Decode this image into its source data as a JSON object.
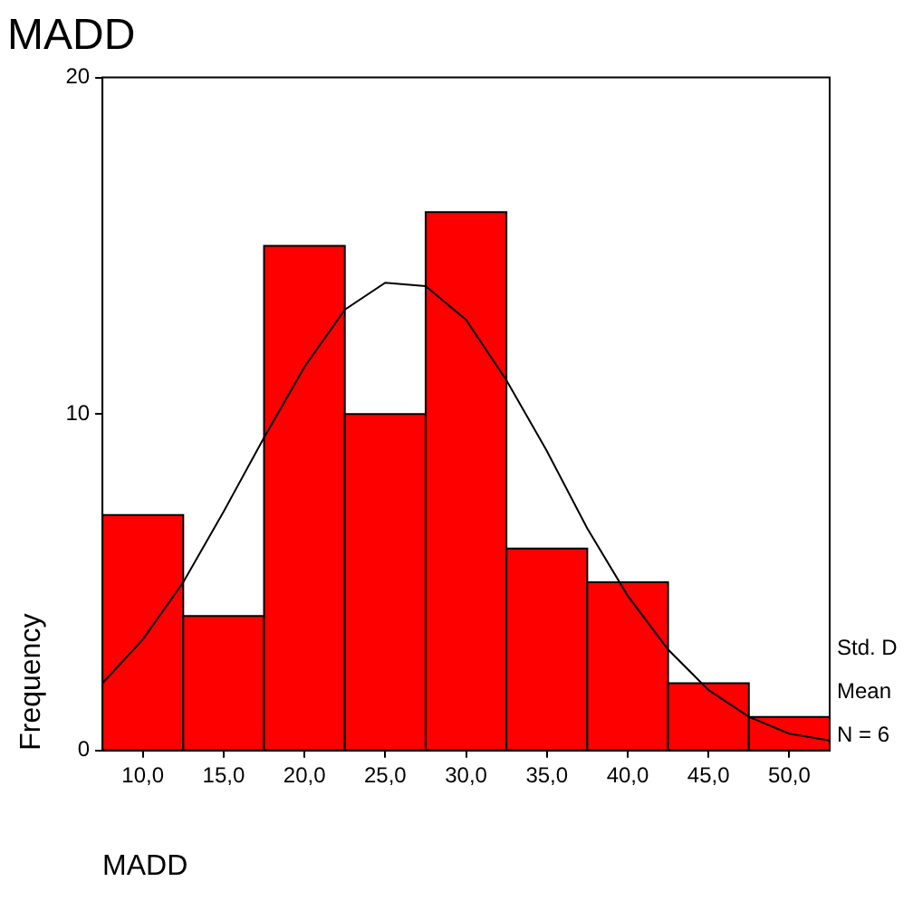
{
  "chart_data": {
    "type": "histogram",
    "title": "MADD",
    "xlabel": "MADD",
    "ylabel": "Frequency",
    "bins": [
      7.5,
      12.5,
      17.5,
      22.5,
      27.5,
      32.5,
      37.5,
      42.5,
      47.5,
      52.5
    ],
    "values": [
      7,
      4,
      15,
      10,
      16,
      6,
      5,
      2,
      1
    ],
    "color": "#ff0000",
    "series": [
      {
        "type": "line",
        "color": "#000000",
        "x": [
          7.5,
          10,
          12.5,
          15,
          17.5,
          20,
          22.5,
          25,
          27.5,
          30,
          32.5,
          35,
          37.5,
          40,
          42.5,
          45,
          47.5,
          50,
          52.5
        ],
        "values": [
          2.0,
          3.3,
          5.0,
          7.1,
          9.3,
          11.4,
          13.1,
          13.9,
          13.8,
          12.8,
          11.0,
          8.9,
          6.6,
          4.6,
          3.0,
          1.8,
          1.0,
          0.5,
          0.3
        ]
      }
    ],
    "xlim": [
      7.5,
      52.5
    ],
    "xticks": [
      {
        "value": 10,
        "label": "10,0"
      },
      {
        "value": 15,
        "label": "15,0"
      },
      {
        "value": 20,
        "label": "20,0"
      },
      {
        "value": 25,
        "label": "25,0"
      },
      {
        "value": 30,
        "label": "30,0"
      },
      {
        "value": 35,
        "label": "35,0"
      },
      {
        "value": 40,
        "label": "40,0"
      },
      {
        "value": 45,
        "label": "45,0"
      },
      {
        "value": 50,
        "label": "50,0"
      }
    ],
    "ylim": [
      0,
      20
    ],
    "yticks": [
      0,
      10,
      20
    ],
    "annotations": [
      "Std. D",
      "Mean",
      "N = 6"
    ]
  }
}
